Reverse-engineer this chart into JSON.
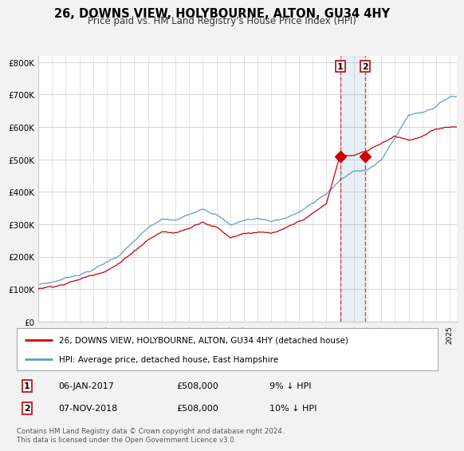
{
  "title": "26, DOWNS VIEW, HOLYBOURNE, ALTON, GU34 4HY",
  "subtitle": "Price paid vs. HM Land Registry's House Price Index (HPI)",
  "background_color": "#f2f2f2",
  "plot_bg_color": "#ffffff",
  "ylim": [
    0,
    820000
  ],
  "yticks": [
    0,
    100000,
    200000,
    300000,
    400000,
    500000,
    600000,
    700000,
    800000
  ],
  "ytick_labels": [
    "£0",
    "£100K",
    "£200K",
    "£300K",
    "£400K",
    "£500K",
    "£600K",
    "£700K",
    "£800K"
  ],
  "transaction1_date": "06-JAN-2017",
  "transaction1_price": 508000,
  "transaction1_note": "9% ↓ HPI",
  "transaction2_date": "07-NOV-2018",
  "transaction2_price": 508000,
  "transaction2_note": "10% ↓ HPI",
  "legend_label1": "26, DOWNS VIEW, HOLYBOURNE, ALTON, GU34 4HY (detached house)",
  "legend_label2": "HPI: Average price, detached house, East Hampshire",
  "footer": "Contains HM Land Registry data © Crown copyright and database right 2024.\nThis data is licensed under the Open Government Licence v3.0.",
  "line1_color": "#cc0000",
  "line2_color": "#6699cc",
  "marker1_x": 2017.0139,
  "marker1_y": 508000,
  "marker2_x": 2018.8466,
  "marker2_y": 508000,
  "xmin": 1995.0,
  "xmax": 2025.5
}
